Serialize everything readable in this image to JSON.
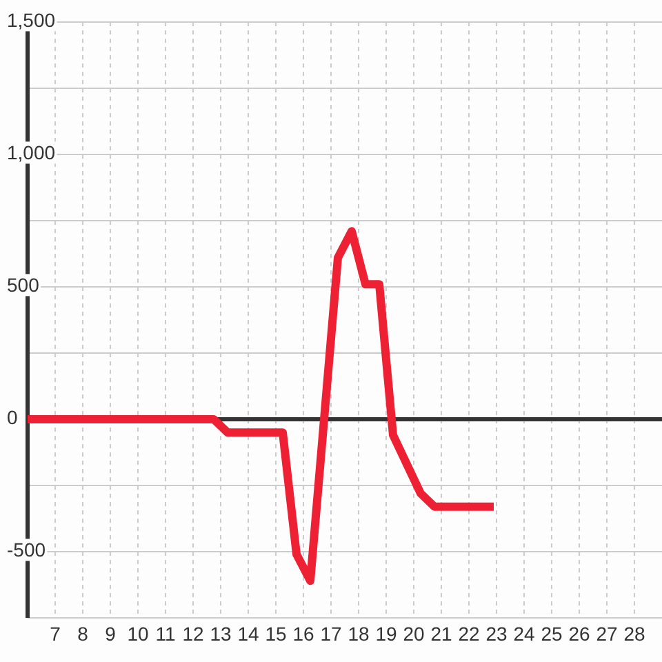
{
  "chart_data": {
    "type": "line",
    "x": [
      6,
      12.75,
      13.25,
      15.25,
      15.75,
      16.25,
      17.25,
      17.75,
      18.25,
      18.75,
      19.25,
      20.25,
      20.75,
      22.9
    ],
    "values": [
      0,
      0,
      -50,
      -50,
      -510,
      -610,
      610,
      710,
      510,
      510,
      -60,
      -280,
      -330,
      -330
    ],
    "color": "#ee2033",
    "line_style": "solid",
    "xlim": [
      6,
      29
    ],
    "xticks": [
      7,
      8,
      9,
      10,
      11,
      12,
      13,
      14,
      15,
      16,
      17,
      18,
      19,
      20,
      21,
      22,
      23,
      24,
      25,
      26,
      27,
      28
    ],
    "ylim": [
      -750,
      1500
    ],
    "yticks": [
      {
        "value": -750,
        "label": null
      },
      -500,
      {
        "value": -250,
        "label": null
      },
      0,
      {
        "value": 250,
        "label": null
      },
      500,
      {
        "value": 750,
        "label": null
      },
      {
        "value": 1000,
        "label": "1,000"
      },
      {
        "value": 1250,
        "label": null
      },
      {
        "value": 1500,
        "label": "1,500"
      }
    ],
    "grid": true,
    "ref_lines": [
      {
        "axis": "y",
        "value": 0,
        "color": "#333333"
      }
    ]
  }
}
